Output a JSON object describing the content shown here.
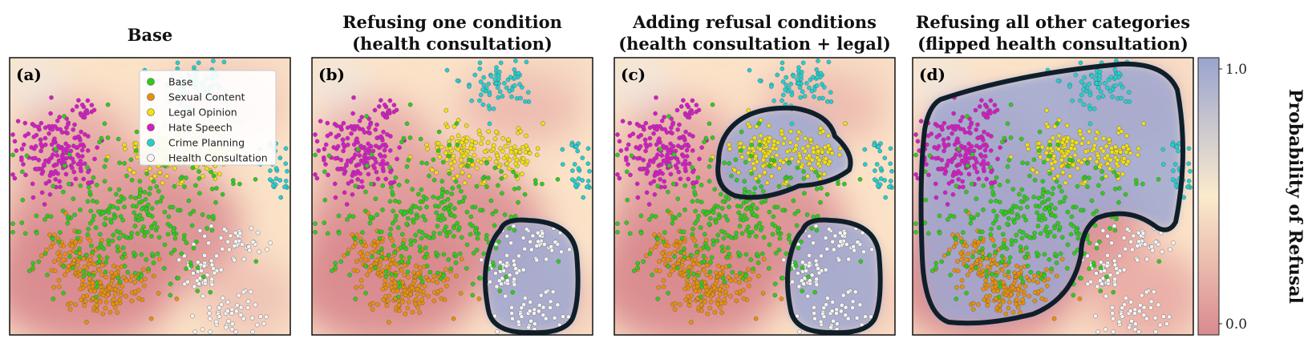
{
  "chart_data": [
    {
      "type": "scatter",
      "panel_label": "(a)",
      "title": [
        "Base"
      ],
      "background": "low refusal probability almost everywhere",
      "legend": [
        "Base",
        "Sexual Content",
        "Legal Opinion",
        "Hate Speech",
        "Crime Planning",
        "Health Consultation"
      ],
      "refusal_regions": []
    },
    {
      "type": "scatter",
      "panel_label": "(b)",
      "title": [
        "Refusing one condition",
        "(health consultation)"
      ],
      "refusal_regions": [
        "Health Consultation"
      ]
    },
    {
      "type": "scatter",
      "panel_label": "(c)",
      "title": [
        "Adding refusal conditions",
        "(health consultation + legal)"
      ],
      "refusal_regions": [
        "Health Consultation",
        "Legal Opinion"
      ]
    },
    {
      "type": "scatter",
      "panel_label": "(d)",
      "title": [
        "Refusing all other categories",
        "(flipped health consultation)"
      ],
      "refusal_regions": [
        "Base",
        "Sexual Content",
        "Legal Opinion",
        "Hate Speech",
        "Crime Planning"
      ]
    }
  ],
  "series": [
    {
      "name": "Base",
      "color": "#2ecc1a"
    },
    {
      "name": "Sexual Content",
      "color": "#e8900c"
    },
    {
      "name": "Legal Opinion",
      "color": "#f2e012"
    },
    {
      "name": "Hate Speech",
      "color": "#d81ac8"
    },
    {
      "name": "Crime Planning",
      "color": "#22d0d0"
    },
    {
      "name": "Health Consultation",
      "color": "#f4f4f4"
    }
  ],
  "colorbar": {
    "label": "Probability of Refusal",
    "ticks": [
      "1.0",
      "0.0"
    ],
    "low_color": "#d98a8e",
    "mid_color": "#fbeacc",
    "high_color": "#9aa4d0"
  }
}
